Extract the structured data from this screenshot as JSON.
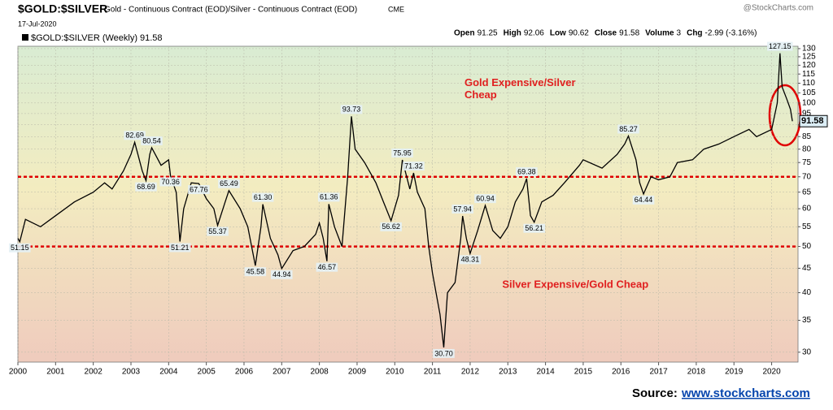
{
  "chart_data": {
    "type": "line",
    "title": "$GOLD:$SILVER",
    "subtitle": "Gold - Continuous Contract (EOD)/Silver - Continuous Contract (EOD)",
    "exchange": "CME",
    "date": "17-Jul-2020",
    "watermark": "@StockCharts.com",
    "header_stats": [
      {
        "label": "Open",
        "value": "91.25"
      },
      {
        "label": "High",
        "value": "92.06"
      },
      {
        "label": "Low",
        "value": "90.62"
      },
      {
        "label": "Close",
        "value": "91.58"
      },
      {
        "label": "Volume",
        "value": "3"
      },
      {
        "label": "Chg",
        "value": "-2.99 (-3.16%)"
      }
    ],
    "legend_label": "$GOLD:$SILVER (Weekly)",
    "log_scale": true,
    "xlim": [
      2000,
      2020.7
    ],
    "xticks": [
      {
        "value": 2000,
        "label": "2000"
      },
      {
        "value": 2001,
        "label": "2001"
      },
      {
        "value": 2002,
        "label": "2002"
      },
      {
        "value": 2003,
        "label": "2003"
      },
      {
        "value": 2004,
        "label": "2004"
      },
      {
        "value": 2005,
        "label": "2005"
      },
      {
        "value": 2006,
        "label": "2006"
      },
      {
        "value": 2007,
        "label": "2007"
      },
      {
        "value": 2008,
        "label": "2008"
      },
      {
        "value": 2009,
        "label": "2009"
      },
      {
        "value": 2010,
        "label": "2010"
      },
      {
        "value": 2011,
        "label": "2011"
      },
      {
        "value": 2012,
        "label": "2012"
      },
      {
        "value": 2013,
        "label": "2013"
      },
      {
        "value": 2014,
        "label": "2014"
      },
      {
        "value": 2015,
        "label": "2015"
      },
      {
        "value": 2016,
        "label": "2016"
      },
      {
        "value": 2017,
        "label": "2017"
      },
      {
        "value": 2018,
        "label": "2018"
      },
      {
        "value": 2019,
        "label": "2019"
      },
      {
        "value": 2020,
        "label": "2020"
      }
    ],
    "ylim": [
      28.6,
      131.5
    ],
    "yticks": [
      130,
      125,
      120,
      115,
      110,
      105,
      100,
      95,
      90,
      85,
      80,
      75,
      70,
      65,
      60,
      55,
      50,
      45,
      40,
      35,
      30
    ],
    "grid": true,
    "x": [
      2000.0,
      2000.05,
      2000.2,
      2000.6,
      2001.0,
      2001.5,
      2002.0,
      2002.3,
      2002.5,
      2002.8,
      2003.0,
      2003.1,
      2003.3,
      2003.4,
      2003.5,
      2003.55,
      2003.8,
      2004.0,
      2004.05,
      2004.2,
      2004.3,
      2004.4,
      2004.6,
      2004.8,
      2005.0,
      2005.2,
      2005.3,
      2005.5,
      2005.6,
      2005.9,
      2006.1,
      2006.3,
      2006.45,
      2006.5,
      2006.7,
      2006.9,
      2007.0,
      2007.3,
      2007.6,
      2007.9,
      2008.0,
      2008.1,
      2008.2,
      2008.25,
      2008.4,
      2008.6,
      2008.75,
      2008.85,
      2008.95,
      2009.2,
      2009.5,
      2009.7,
      2009.9,
      2010.1,
      2010.2,
      2010.4,
      2010.5,
      2010.6,
      2010.8,
      2010.9,
      2011.0,
      2011.2,
      2011.3,
      2011.4,
      2011.6,
      2011.75,
      2011.8,
      2011.9,
      2012.0,
      2012.2,
      2012.4,
      2012.6,
      2012.8,
      2013.0,
      2013.2,
      2013.4,
      2013.5,
      2013.6,
      2013.7,
      2013.9,
      2014.2,
      2014.5,
      2014.9,
      2015.0,
      2015.5,
      2015.9,
      2016.1,
      2016.2,
      2016.4,
      2016.5,
      2016.6,
      2016.8,
      2017.0,
      2017.3,
      2017.5,
      2017.9,
      2018.2,
      2018.6,
      2019.0,
      2019.4,
      2019.6,
      2020.0,
      2020.15,
      2020.22,
      2020.28,
      2020.4,
      2020.5,
      2020.55
    ],
    "series": [
      {
        "name": "$GOLD:$SILVER",
        "color": "#000000",
        "values": [
          52,
          51.15,
          57,
          55,
          58,
          62,
          65,
          68,
          66,
          72,
          78,
          82.69,
          72,
          68.69,
          78,
          80.54,
          74,
          76,
          70.36,
          65,
          51.21,
          60,
          68,
          67.76,
          63,
          60,
          55.37,
          62,
          65.49,
          60,
          55,
          45.58,
          55,
          61.3,
          52,
          48,
          44.94,
          49,
          50,
          53,
          56,
          52,
          46.57,
          61.36,
          55,
          50,
          70,
          93.73,
          80,
          75,
          68,
          62,
          56.62,
          64,
          75.95,
          66,
          71.32,
          65,
          60,
          50,
          44,
          36,
          30.7,
          40,
          42,
          52,
          57.94,
          52,
          48.31,
          54,
          60.94,
          54,
          52,
          55,
          62,
          66,
          69.38,
          58,
          56.21,
          62,
          64,
          68,
          74,
          76,
          73,
          78,
          82,
          85.27,
          76,
          68,
          64.44,
          70,
          69,
          70,
          75,
          76,
          80,
          82,
          85,
          88,
          85,
          88,
          100,
          127.15,
          108,
          102,
          97,
          91.58
        ]
      }
    ],
    "annotations": [
      {
        "x": 2000.05,
        "value": 51.15,
        "label": "51.15"
      },
      {
        "x": 2003.1,
        "value": 82.69,
        "label": "82.69"
      },
      {
        "x": 2003.4,
        "value": 68.69,
        "label": "68.69"
      },
      {
        "x": 2003.55,
        "value": 80.54,
        "label": "80.54"
      },
      {
        "x": 2004.05,
        "value": 70.36,
        "label": "70.36"
      },
      {
        "x": 2004.3,
        "value": 51.21,
        "label": "51.21"
      },
      {
        "x": 2004.8,
        "value": 67.76,
        "label": "67.76"
      },
      {
        "x": 2005.3,
        "value": 55.37,
        "label": "55.37"
      },
      {
        "x": 2005.6,
        "value": 65.49,
        "label": "65.49"
      },
      {
        "x": 2006.3,
        "value": 45.58,
        "label": "45.58"
      },
      {
        "x": 2006.5,
        "value": 61.3,
        "label": "61.30"
      },
      {
        "x": 2007.0,
        "value": 44.94,
        "label": "44.94"
      },
      {
        "x": 2008.2,
        "value": 46.57,
        "label": "46.57"
      },
      {
        "x": 2008.25,
        "value": 61.36,
        "label": "61.36"
      },
      {
        "x": 2008.85,
        "value": 93.73,
        "label": "93.73"
      },
      {
        "x": 2009.9,
        "value": 56.62,
        "label": "56.62"
      },
      {
        "x": 2010.2,
        "value": 75.95,
        "label": "75.95"
      },
      {
        "x": 2010.5,
        "value": 71.32,
        "label": "71.32"
      },
      {
        "x": 2011.3,
        "value": 30.7,
        "label": "30.70"
      },
      {
        "x": 2011.8,
        "value": 57.94,
        "label": "57.94"
      },
      {
        "x": 2012.0,
        "value": 48.31,
        "label": "48.31"
      },
      {
        "x": 2012.4,
        "value": 60.94,
        "label": "60.94"
      },
      {
        "x": 2013.5,
        "value": 69.38,
        "label": "69.38"
      },
      {
        "x": 2013.7,
        "value": 56.21,
        "label": "56.21"
      },
      {
        "x": 2016.2,
        "value": 85.27,
        "label": "85.27"
      },
      {
        "x": 2016.6,
        "value": 64.44,
        "label": "64.44"
      },
      {
        "x": 2020.22,
        "value": 127.15,
        "label": "127.15"
      }
    ],
    "reference_lines": [
      70,
      50
    ],
    "reference_color": "#e00000",
    "text_annotations": [
      {
        "text": "Gold Expensive/Silver Cheap",
        "lines": [
          "Gold Expensive/Silver",
          "Cheap"
        ],
        "x": 2011.85,
        "value": 110
      },
      {
        "text": "Silver Expensive/Gold Cheap",
        "lines": [
          "Silver Expensive/Gold Cheap"
        ],
        "x": 2012.85,
        "value": 41.5
      }
    ],
    "source_label": "Source:",
    "source_link": "www.stockcharts.com"
  }
}
